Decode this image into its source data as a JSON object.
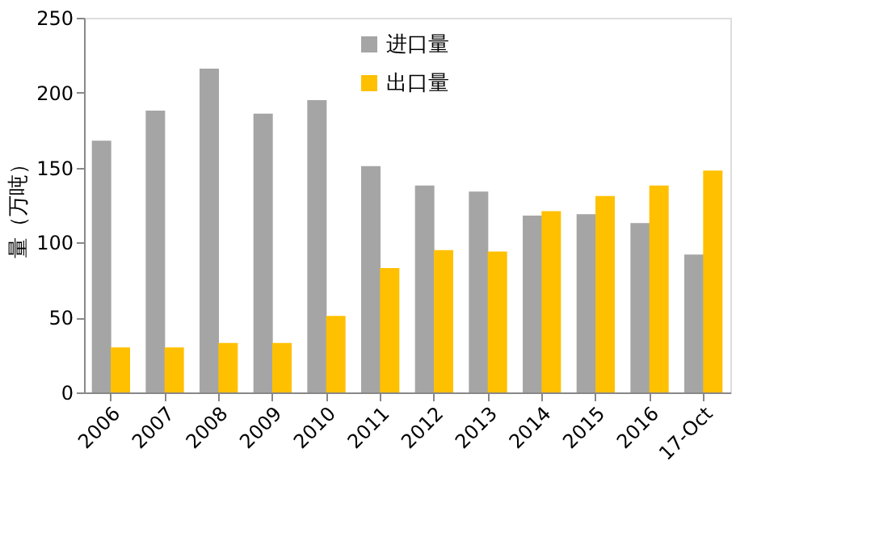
{
  "chart_data": {
    "type": "bar",
    "ylabel": "量（万吨）",
    "categories": [
      "2006",
      "2007",
      "2008",
      "2009",
      "2010",
      "2011",
      "2012",
      "2013",
      "2014",
      "2015",
      "2016",
      "17-Oct"
    ],
    "series": [
      {
        "name": "进口量",
        "color": "#a5a5a5",
        "values": [
          168,
          188,
          216,
          186,
          195,
          151,
          138,
          134,
          118,
          119,
          113,
          92
        ]
      },
      {
        "name": "出口量",
        "color": "#ffc000",
        "values": [
          30,
          30,
          33,
          33,
          51,
          83,
          95,
          94,
          121,
          131,
          138,
          148
        ]
      }
    ],
    "ylim": [
      0,
      250
    ],
    "yticks": [
      0,
      50,
      100,
      150,
      200,
      250
    ],
    "grid": false,
    "legend": "top"
  }
}
